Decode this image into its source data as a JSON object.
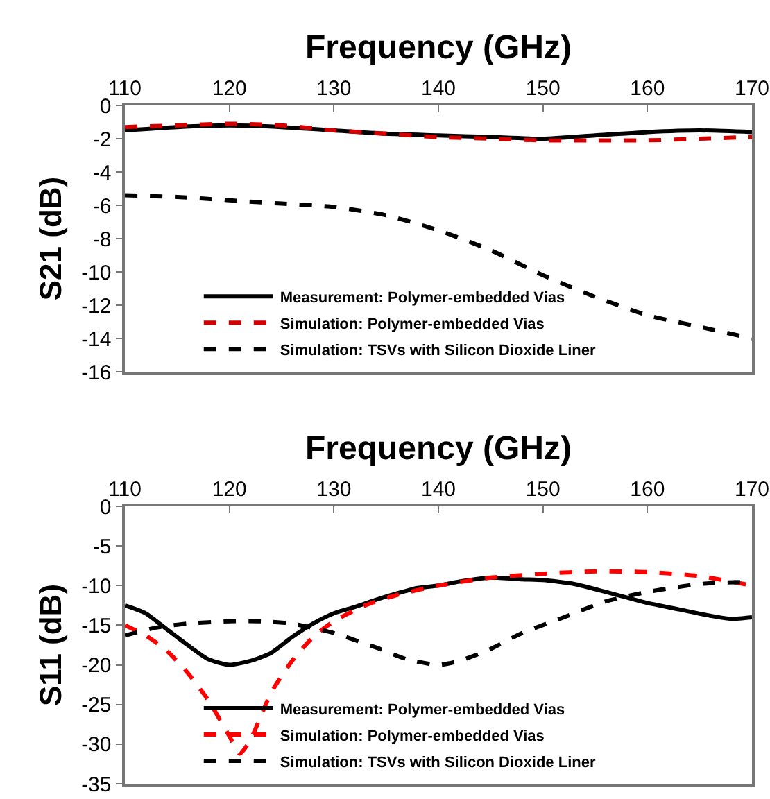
{
  "chart_data": [
    {
      "type": "line",
      "xlabel": "Frequency (GHz)",
      "ylabel": "S21 (dB)",
      "xlim": [
        110,
        170
      ],
      "xticks": [
        110,
        120,
        130,
        140,
        150,
        160,
        170
      ],
      "ylim": [
        -16,
        0
      ],
      "yticks": [
        -16,
        -14,
        -12,
        -10,
        -8,
        -6,
        -4,
        -2,
        0
      ],
      "grid": false,
      "legend": "bottom",
      "marker": "none",
      "series": [
        {
          "name": "Measurement: Polymer-embedded Vias",
          "color": "#000000",
          "line_style": "solid",
          "x": [
            110,
            115,
            120,
            125,
            130,
            135,
            140,
            145,
            150,
            155,
            160,
            165,
            170
          ],
          "values": [
            -1.5,
            -1.3,
            -1.2,
            -1.3,
            -1.5,
            -1.7,
            -1.8,
            -1.9,
            -2.0,
            -1.8,
            -1.6,
            -1.5,
            -1.6
          ]
        },
        {
          "name": "Simulation: Polymer-embedded Vias",
          "color": "#d40000",
          "line_style": "dashed",
          "x": [
            110,
            115,
            120,
            125,
            130,
            135,
            140,
            145,
            150,
            155,
            160,
            165,
            170
          ],
          "values": [
            -1.3,
            -1.2,
            -1.1,
            -1.2,
            -1.5,
            -1.7,
            -1.9,
            -2.0,
            -2.1,
            -2.1,
            -2.1,
            -2.0,
            -1.9
          ]
        },
        {
          "name": "Simulation: TSVs with Silicon Dioxide Liner",
          "color": "#000000",
          "line_style": "dashed",
          "x": [
            110,
            115,
            120,
            125,
            130,
            135,
            140,
            145,
            150,
            155,
            160,
            165,
            170
          ],
          "values": [
            -5.4,
            -5.5,
            -5.7,
            -5.9,
            -6.1,
            -6.6,
            -7.5,
            -8.7,
            -10.2,
            -11.5,
            -12.6,
            -13.3,
            -14
          ]
        }
      ]
    },
    {
      "type": "line",
      "xlabel": "Frequency (GHz)",
      "ylabel": "S11 (dB)",
      "xlim": [
        110,
        170
      ],
      "xticks": [
        110,
        120,
        130,
        140,
        150,
        160,
        170
      ],
      "ylim": [
        -35,
        0
      ],
      "yticks": [
        -35,
        -30,
        -25,
        -20,
        -15,
        -10,
        -5,
        0
      ],
      "grid": false,
      "legend": "bottom",
      "marker": "none",
      "series": [
        {
          "name": "Measurement: Polymer-embedded Vias",
          "color": "#000000",
          "line_style": "solid",
          "x": [
            110,
            112,
            114,
            116,
            118,
            120,
            122,
            124,
            126,
            128,
            130,
            132,
            134,
            136,
            138,
            140,
            142,
            145,
            148,
            150,
            153,
            156,
            158,
            160,
            163,
            166,
            168,
            170
          ],
          "values": [
            -12.5,
            -13.5,
            -15.5,
            -17.5,
            -19.3,
            -20,
            -19.5,
            -18.5,
            -16.5,
            -14.8,
            -13.5,
            -12.7,
            -11.8,
            -11,
            -10.3,
            -10,
            -9.5,
            -9,
            -9.2,
            -9.3,
            -9.8,
            -10.8,
            -11.5,
            -12.2,
            -13,
            -13.8,
            -14.2,
            -14
          ]
        },
        {
          "name": "Simulation: Polymer-embedded Vias",
          "color": "#ff0000",
          "line_style": "dashed",
          "x": [
            110,
            112,
            114,
            116,
            118,
            120,
            121,
            122,
            124,
            126,
            128,
            130,
            133,
            136,
            140,
            145,
            150,
            155,
            160,
            165,
            170
          ],
          "values": [
            -15,
            -16.3,
            -18.2,
            -21,
            -24.5,
            -29,
            -31.2,
            -29.5,
            -23.5,
            -19.5,
            -16.5,
            -14.5,
            -12.5,
            -11.2,
            -10,
            -9,
            -8.5,
            -8.2,
            -8.3,
            -8.8,
            -10
          ]
        },
        {
          "name": "Simulation: TSVs with Silicon Dioxide Liner",
          "color": "#000000",
          "line_style": "dashed",
          "x": [
            110,
            113,
            116,
            120,
            123,
            126,
            130,
            134,
            137,
            140,
            142,
            145,
            148,
            152,
            156,
            160,
            165,
            170
          ],
          "values": [
            -16.3,
            -15.3,
            -14.8,
            -14.5,
            -14.5,
            -14.8,
            -16,
            -17.8,
            -19.3,
            -20,
            -19.5,
            -18,
            -16,
            -14,
            -12,
            -10.8,
            -9.8,
            -9.5
          ]
        }
      ]
    }
  ]
}
